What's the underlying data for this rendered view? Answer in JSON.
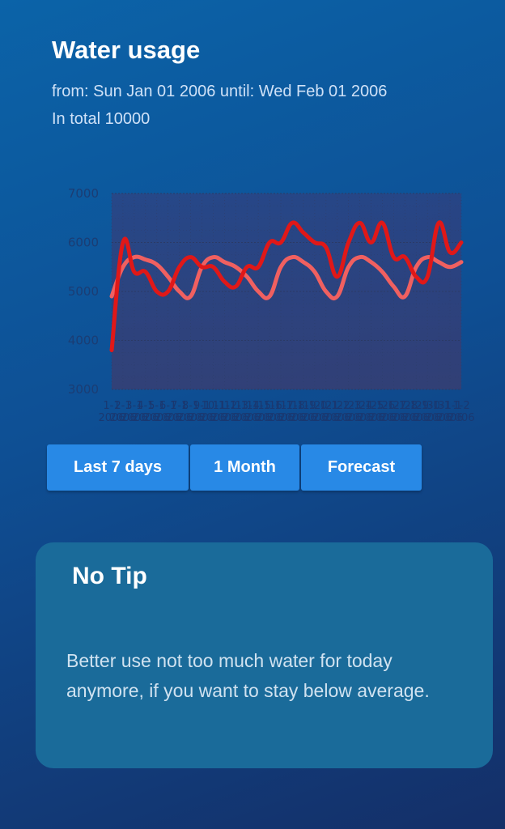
{
  "header": {
    "title": "Water usage",
    "range_text": "from: Sun Jan 01 2006 until: Wed Feb 01 2006",
    "total_text": "In total 10000"
  },
  "chart_data": {
    "type": "line",
    "ylim": [
      3000,
      7000
    ],
    "y_ticks": [
      "7000",
      "6000",
      "5000",
      "4000",
      "3000"
    ],
    "grid": true,
    "categories": [
      "1-1-2006",
      "2-1-2006",
      "3-1-2006",
      "4-1-2006",
      "5-1-2006",
      "6-1-2006",
      "7-1-2006",
      "8-1-2006",
      "9-1-2006",
      "10-1-2006",
      "11-1-2006",
      "12-1-2006",
      "13-1-2006",
      "14-1-2006",
      "15-1-2006",
      "16-1-2006",
      "17-1-2006",
      "18-1-2006",
      "19-1-2006",
      "20-1-2006",
      "21-1-2006",
      "22-1-2006",
      "23-1-2006",
      "24-1-2006",
      "25-1-2006",
      "26-1-2006",
      "27-1-2006",
      "28-1-2006",
      "29-1-2006",
      "30-1-2006",
      "31-1-2006",
      "1-2-2006"
    ],
    "series": [
      {
        "color": "#e01818",
        "values": [
          3800,
          6000,
          5400,
          5400,
          5000,
          5000,
          5500,
          5700,
          5500,
          5500,
          5200,
          5100,
          5500,
          5500,
          6000,
          6000,
          6400,
          6200,
          6000,
          5900,
          5300,
          6000,
          6400,
          6000,
          6400,
          5700,
          5700,
          5300,
          5300,
          6400,
          5800,
          6000
        ]
      },
      {
        "color": "#f06060",
        "values": [
          4900,
          5500,
          5700,
          5650,
          5550,
          5300,
          5000,
          4900,
          5500,
          5700,
          5600,
          5500,
          5300,
          5000,
          4900,
          5500,
          5700,
          5600,
          5400,
          5000,
          4900,
          5500,
          5700,
          5600,
          5400,
          5100,
          4900,
          5500,
          5700,
          5600,
          5500,
          5600
        ]
      }
    ]
  },
  "buttons": [
    {
      "label": "Last 7 days"
    },
    {
      "label": "1 Month"
    },
    {
      "label": "Forecast"
    }
  ],
  "tip": {
    "title": "No Tip",
    "text": "Better use not too much water for today anymore, if you want to stay below average."
  }
}
